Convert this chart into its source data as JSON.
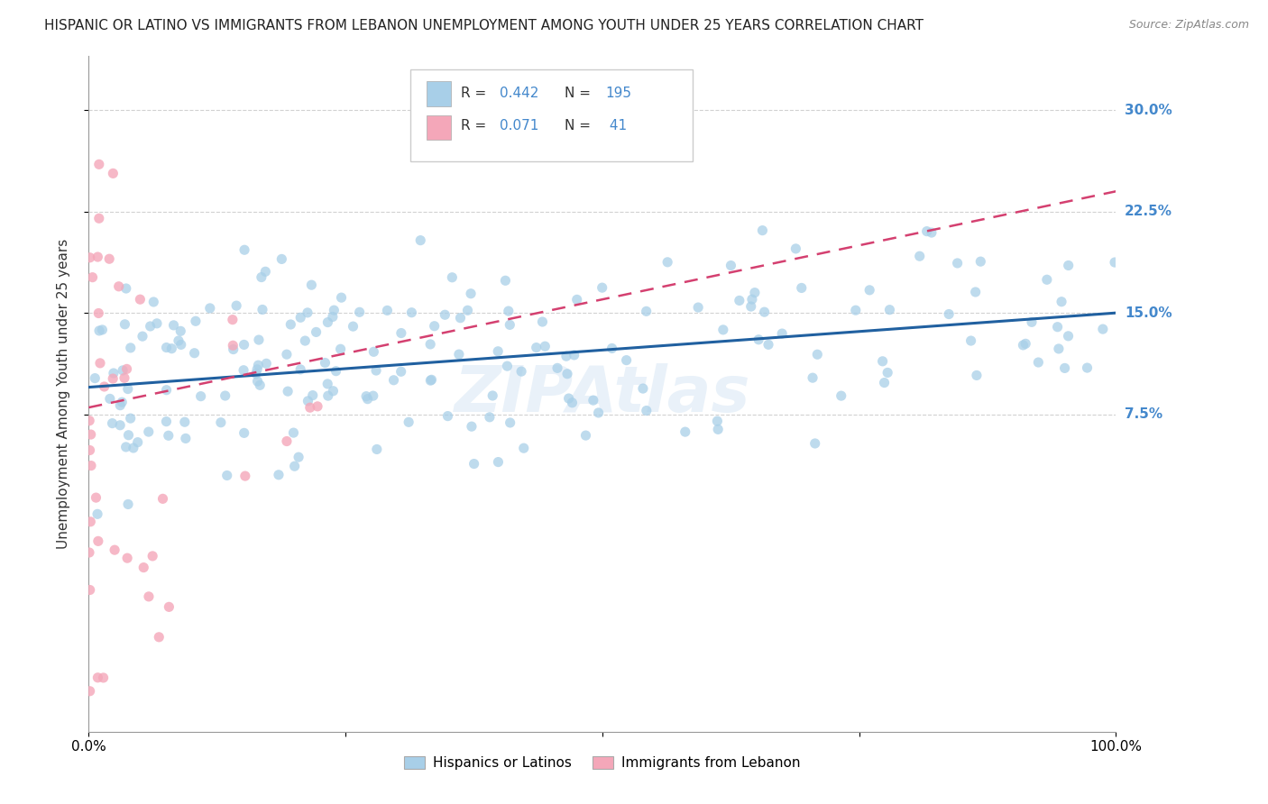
{
  "title": "HISPANIC OR LATINO VS IMMIGRANTS FROM LEBANON UNEMPLOYMENT AMONG YOUTH UNDER 25 YEARS CORRELATION CHART",
  "source": "Source: ZipAtlas.com",
  "ylabel": "Unemployment Among Youth under 25 years",
  "blue_R": 0.442,
  "blue_N": 195,
  "pink_R": 0.071,
  "pink_N": 41,
  "blue_color": "#a8cfe8",
  "pink_color": "#f4a7b9",
  "blue_line_color": "#2060a0",
  "pink_line_color": "#d44070",
  "xlim": [
    0,
    1.0
  ],
  "ylim": [
    -0.16,
    0.34
  ],
  "ytick_vals": [
    0.075,
    0.15,
    0.225,
    0.3
  ],
  "ytick_labels": [
    "7.5%",
    "15.0%",
    "22.5%",
    "30.0%"
  ],
  "xticks": [
    0.0,
    0.25,
    0.5,
    0.75,
    1.0
  ],
  "xtick_labels": [
    "0.0%",
    "",
    "",
    "",
    "100.0%"
  ],
  "watermark": "ZIPAtlas",
  "background_color": "#ffffff",
  "grid_color": "#cccccc",
  "title_fontsize": 11,
  "axis_label_fontsize": 11,
  "tick_fontsize": 11,
  "legend_label_blue": "Hispanics or Latinos",
  "legend_label_pink": "Immigrants from Lebanon",
  "right_label_color": "#4488cc",
  "blue_intercept": 0.095,
  "blue_slope": 0.055,
  "pink_intercept": 0.08,
  "pink_slope": 0.16
}
